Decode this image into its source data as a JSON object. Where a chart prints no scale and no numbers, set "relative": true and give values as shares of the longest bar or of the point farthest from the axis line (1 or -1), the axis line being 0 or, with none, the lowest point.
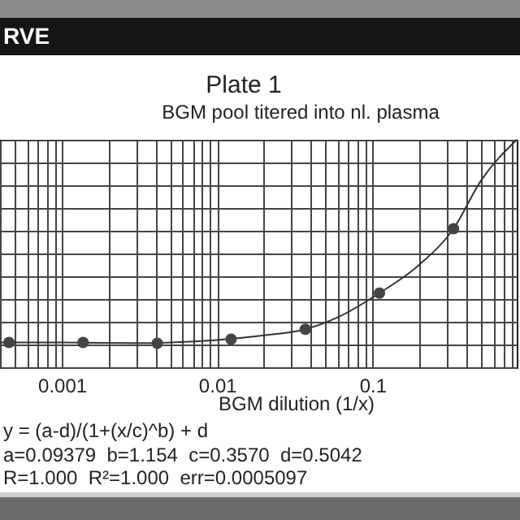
{
  "chart_data": {
    "type": "scatter",
    "title": "Plate  1",
    "subtitle": "BGM pool titered into nl. plasma",
    "xlabel": "BGM dilution (1/x)",
    "annotations": [
      "RVE",
      "y = (a-d)/(1+(x/c)^b) + d",
      "a=0.09379  b=1.154  c=0.3570  d=0.5042",
      "R=1.000  R²=1.000  err=0.0005097"
    ],
    "relative": true,
    "log": "x",
    "grid": true,
    "marker": "circle",
    "xlim": [
      0.0004,
      0.85
    ],
    "xticks": [
      {
        "value": 0.0004,
        "label": null
      },
      {
        "value": 0.0005,
        "label": null
      },
      {
        "value": 0.0006,
        "label": null
      },
      {
        "value": 0.0007,
        "label": null
      },
      {
        "value": 0.0008,
        "label": null
      },
      {
        "value": 0.0009,
        "label": null
      },
      0.001,
      {
        "value": 0.002,
        "label": null
      },
      {
        "value": 0.003,
        "label": null
      },
      {
        "value": 0.004,
        "label": null
      },
      {
        "value": 0.005,
        "label": null
      },
      {
        "value": 0.006,
        "label": null
      },
      {
        "value": 0.007,
        "label": null
      },
      {
        "value": 0.008,
        "label": null
      },
      {
        "value": 0.009,
        "label": null
      },
      0.01,
      {
        "value": 0.02,
        "label": null
      },
      {
        "value": 0.03,
        "label": null
      },
      {
        "value": 0.04,
        "label": null
      },
      {
        "value": 0.05,
        "label": null
      },
      {
        "value": 0.06,
        "label": null
      },
      {
        "value": 0.07,
        "label": null
      },
      {
        "value": 0.08,
        "label": null
      },
      {
        "value": 0.09,
        "label": null
      },
      0.1,
      {
        "value": 0.2,
        "label": null
      },
      {
        "value": 0.3,
        "label": null
      },
      {
        "value": 0.4,
        "label": null
      },
      {
        "value": 0.5,
        "label": null
      },
      {
        "value": 0.6,
        "label": null
      },
      {
        "value": 0.7,
        "label": null
      },
      {
        "value": 0.8,
        "label": null
      }
    ],
    "series": [
      {
        "type": "line",
        "marker": "none",
        "color": "#333333",
        "x": [
          0.0004,
          0.001,
          0.003,
          0.01,
          0.02,
          0.037,
          0.06,
          0.111,
          0.2,
          0.333,
          0.5,
          0.85
        ],
        "values": [
          0.109,
          0.109,
          0.106,
          0.12,
          0.14,
          0.167,
          0.22,
          0.326,
          0.45,
          0.609,
          0.82,
          1.0
        ]
      },
      {
        "color": "#444444",
        "x": [
          0.000457,
          0.00137,
          0.00412,
          0.0123,
          0.037,
          0.111,
          0.333
        ],
        "values": [
          0.109,
          0.109,
          0.105,
          0.123,
          0.167,
          0.326,
          0.609
        ]
      }
    ]
  }
}
